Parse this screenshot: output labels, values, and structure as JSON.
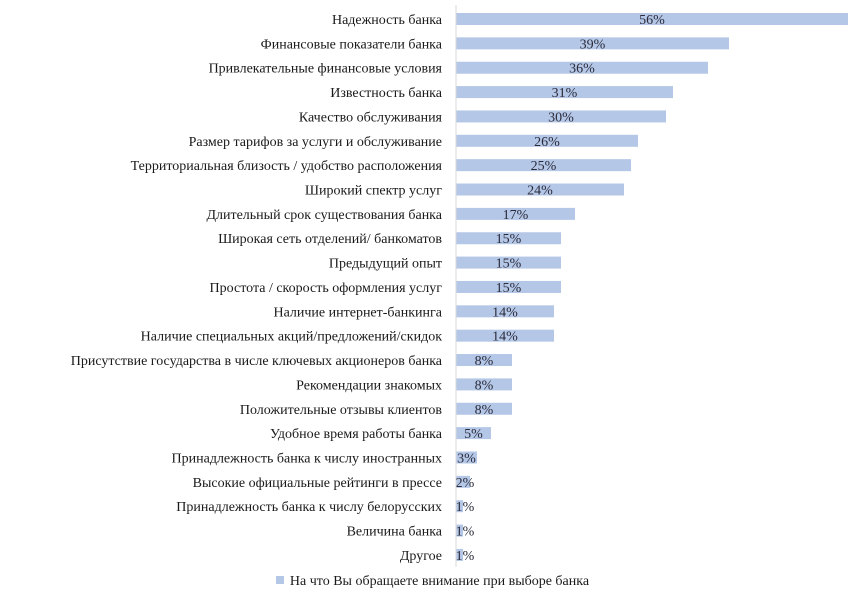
{
  "chart_data": {
    "type": "bar",
    "orientation": "horizontal",
    "categories": [
      "Надежность банка",
      "Финансовые показатели банка",
      "Привлекательные финансовые условия",
      "Известность банка",
      "Качество обслуживания",
      "Размер тарифов за услуги и обслуживание",
      "Территориальная близость / удобство расположения",
      "Широкий спектр услуг",
      "Длительный срок существования банка",
      "Широкая сеть отделений/ банкоматов",
      "Предыдущий опыт",
      "Простота / скорость оформления услуг",
      "Наличие интернет-банкинга",
      "Наличие специальных акций/предложений/скидок",
      "Присутствие государства в числе ключевых акционеров банка",
      "Рекомендации знакомых",
      "Положительные отзывы клиентов",
      "Удобное время работы банка",
      "Принадлежность банка к числу иностранных",
      "Высокие официальные рейтинги в прессе",
      "Принадлежность банка к числу белорусских",
      "Величина банка",
      "Другое"
    ],
    "series": [
      {
        "name": "На что Вы обращаете внимание при выборе банка",
        "values": [
          56,
          39,
          36,
          31,
          30,
          26,
          25,
          24,
          17,
          15,
          15,
          15,
          14,
          14,
          8,
          8,
          8,
          5,
          3,
          2,
          1,
          1,
          1
        ],
        "labels": [
          "56%",
          "39%",
          "36%",
          "31%",
          "30%",
          "26%",
          "25%",
          "24%",
          "17%",
          "15%",
          "15%",
          "15%",
          "14%",
          "14%",
          "8%",
          "8%",
          "8%",
          "5%",
          "3%",
          "2%",
          "1%",
          "1%",
          "1%"
        ]
      }
    ],
    "title": "",
    "xlabel": "",
    "ylabel": "",
    "xlim": [
      0,
      56
    ],
    "grid": false,
    "legend_position": "bottom",
    "colors": {
      "bar": "#b4c7e7",
      "axis": "#d9d9d9"
    }
  }
}
